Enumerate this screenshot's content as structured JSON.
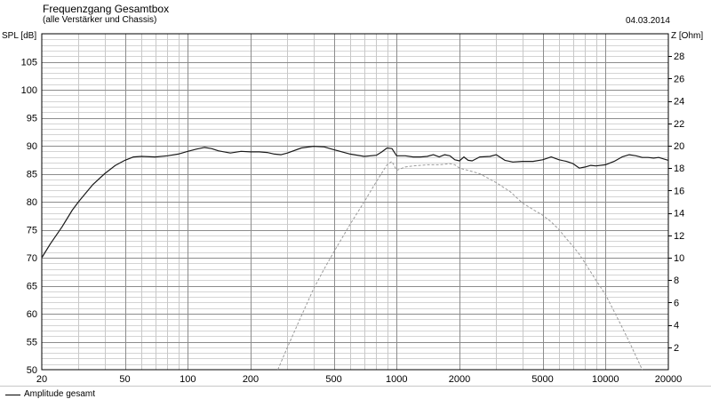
{
  "chart_data": {
    "type": "line",
    "title": "Frequenzgang Gesamtbox",
    "subtitle": "(alle Verstärker und Chassis)",
    "date": "04.03.2014",
    "ylabel_left": "SPL [dB]",
    "ylabel_right": "Z [Ohm]",
    "xlabel": "",
    "x_scale": "log",
    "xlim": [
      20,
      20000
    ],
    "ylim_left": [
      50,
      110
    ],
    "ylim_right": [
      0,
      30
    ],
    "grid": true,
    "x_tick_labels": [
      "20",
      "50",
      "100",
      "200",
      "500",
      "1000",
      "2000",
      "5000",
      "10000",
      "20000"
    ],
    "x_tick_values": [
      20,
      50,
      100,
      200,
      500,
      1000,
      2000,
      5000,
      10000,
      20000
    ],
    "y_left_tick_labels": [
      "50",
      "55",
      "60",
      "65",
      "70",
      "75",
      "80",
      "85",
      "90",
      "95",
      "100",
      "105"
    ],
    "y_left_tick_values": [
      50,
      55,
      60,
      65,
      70,
      75,
      80,
      85,
      90,
      95,
      100,
      105
    ],
    "y_right_tick_labels": [
      "2",
      "4",
      "6",
      "8",
      "10",
      "12",
      "14",
      "16",
      "18",
      "20",
      "22",
      "24",
      "26",
      "28"
    ],
    "y_right_tick_values": [
      2,
      4,
      6,
      8,
      10,
      12,
      14,
      16,
      18,
      20,
      22,
      24,
      26,
      28
    ],
    "series": [
      {
        "name": "Amplitude gesamt",
        "axis": "left",
        "style": "solid",
        "color": "#1a1a1a",
        "x": [
          20,
          22,
          25,
          28,
          30,
          35,
          40,
          45,
          50,
          55,
          60,
          70,
          80,
          90,
          100,
          110,
          120,
          130,
          140,
          160,
          180,
          200,
          220,
          240,
          260,
          280,
          300,
          350,
          400,
          450,
          500,
          600,
          700,
          800,
          850,
          900,
          950,
          1000,
          1100,
          1200,
          1300,
          1400,
          1500,
          1600,
          1700,
          1800,
          1900,
          2000,
          2100,
          2200,
          2300,
          2500,
          2800,
          3000,
          3300,
          3600,
          4000,
          4500,
          5000,
          5500,
          6000,
          6500,
          7000,
          7500,
          8000,
          8500,
          9000,
          10000,
          11000,
          12000,
          13000,
          14000,
          15000,
          16000,
          17000,
          18000,
          20000
        ],
        "values": [
          70.0,
          72.5,
          75.5,
          78.5,
          80.0,
          83.0,
          85.0,
          86.5,
          87.4,
          88.0,
          88.1,
          88.0,
          88.2,
          88.5,
          89.0,
          89.4,
          89.7,
          89.5,
          89.1,
          88.7,
          89.0,
          88.9,
          88.9,
          88.8,
          88.5,
          88.4,
          88.7,
          89.6,
          89.9,
          89.8,
          89.3,
          88.5,
          88.1,
          88.3,
          88.9,
          89.6,
          89.5,
          88.2,
          88.2,
          88.0,
          88.0,
          88.1,
          88.4,
          88.0,
          88.4,
          88.2,
          87.5,
          87.3,
          88.0,
          87.4,
          87.3,
          88.0,
          88.1,
          88.4,
          87.4,
          87.1,
          87.2,
          87.2,
          87.5,
          88.0,
          87.5,
          87.2,
          86.8,
          86.0,
          86.2,
          86.5,
          86.4,
          86.6,
          87.2,
          88.0,
          88.4,
          88.2,
          87.9,
          87.9,
          87.8,
          87.9,
          87.4
        ]
      },
      {
        "name": "",
        "axis": "right",
        "style": "dashed",
        "color": "#9a9a9a",
        "x": [
          270,
          300,
          350,
          400,
          450,
          500,
          600,
          700,
          800,
          900,
          950,
          1000,
          1100,
          1200,
          1400,
          1600,
          1800,
          1900,
          2000,
          2200,
          2500,
          3000,
          3500,
          4000,
          4500,
          5000,
          5500,
          6000,
          6500,
          7000,
          7500,
          8000,
          9000,
          10000,
          11000,
          12000,
          13000,
          14000,
          15000
        ],
        "values": [
          0.0,
          2.0,
          4.8,
          7.2,
          9.0,
          10.5,
          13.0,
          15.0,
          16.8,
          18.3,
          18.6,
          17.8,
          18.1,
          18.2,
          18.3,
          18.3,
          18.4,
          18.3,
          18.0,
          17.8,
          17.5,
          16.7,
          15.9,
          14.9,
          14.3,
          13.8,
          13.2,
          12.5,
          11.7,
          11.0,
          10.3,
          9.5,
          8.0,
          6.7,
          5.2,
          3.8,
          2.5,
          1.2,
          0.0
        ]
      }
    ]
  },
  "legend": {
    "label": "Amplitude gesamt"
  }
}
